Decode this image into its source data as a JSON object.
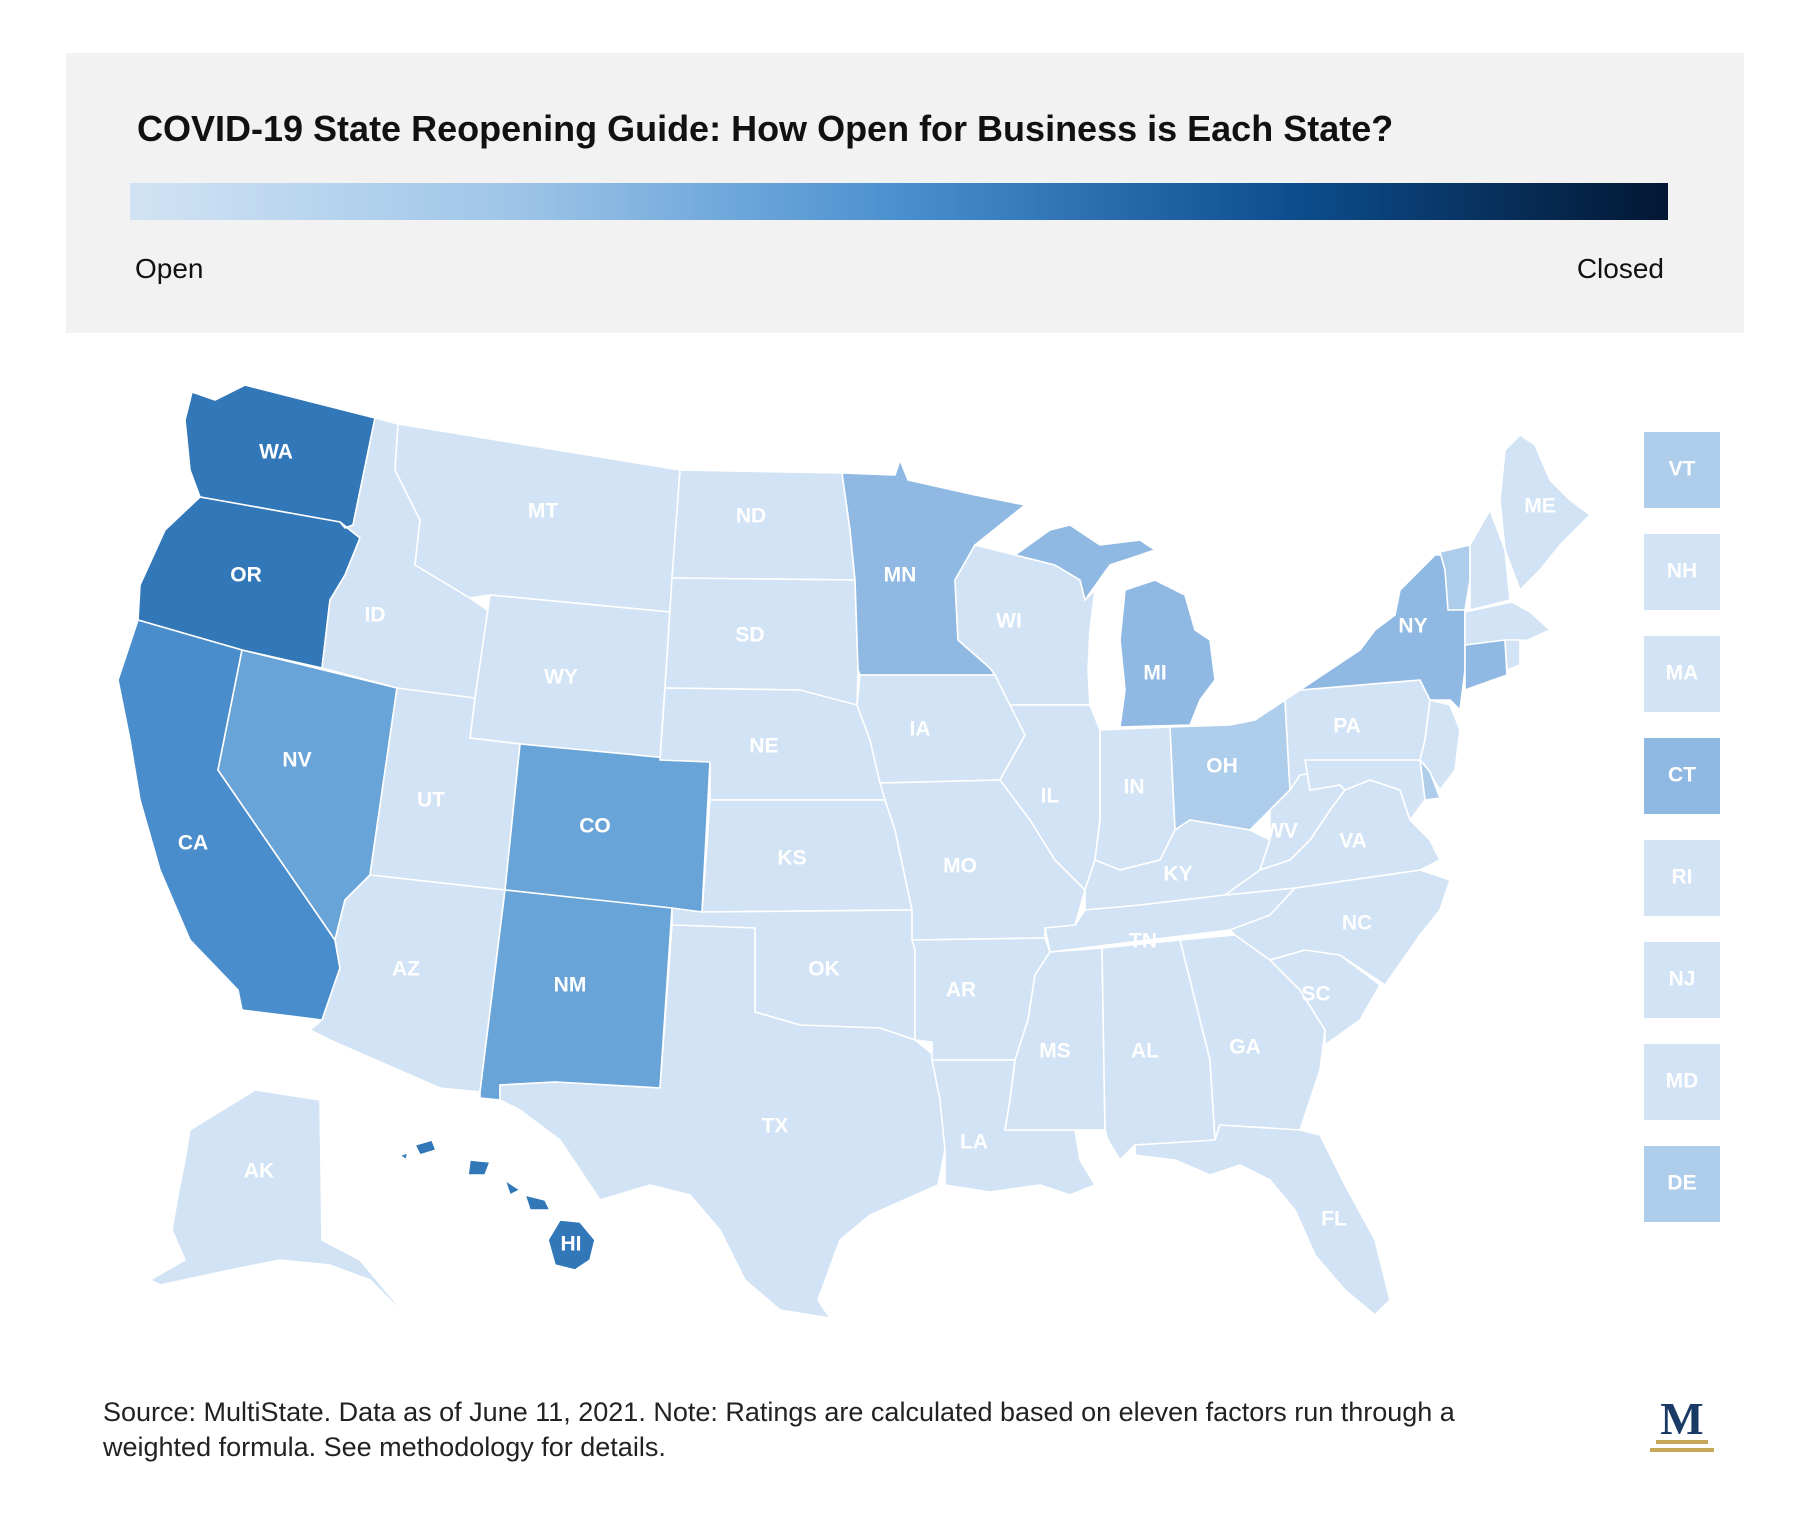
{
  "title": "COVID-19 State Reopening Guide: How Open for Business is Each State?",
  "legend": {
    "low_label": "Open",
    "high_label": "Closed",
    "gradient_colors": [
      "#d1e3f4",
      "#9ec5e8",
      "#4a90d0",
      "#0d4f91",
      "#031732"
    ]
  },
  "colors": {
    "level_1": "#d1e3f4",
    "level_2": "#adcdeb",
    "level_3": "#8fb9e3",
    "level_4": "#69a4d9",
    "level_5": "#4a8dcd",
    "level_6": "#3277b8"
  },
  "states": {
    "WA": {
      "label": "WA",
      "level": 6
    },
    "OR": {
      "label": "OR",
      "level": 6
    },
    "CA": {
      "label": "CA",
      "level": 5
    },
    "NV": {
      "label": "NV",
      "level": 4
    },
    "ID": {
      "label": "ID",
      "level": 1
    },
    "MT": {
      "label": "MT",
      "level": 1
    },
    "WY": {
      "label": "WY",
      "level": 1
    },
    "UT": {
      "label": "UT",
      "level": 1
    },
    "AZ": {
      "label": "AZ",
      "level": 1
    },
    "CO": {
      "label": "CO",
      "level": 4
    },
    "NM": {
      "label": "NM",
      "level": 4
    },
    "ND": {
      "label": "ND",
      "level": 1
    },
    "SD": {
      "label": "SD",
      "level": 1
    },
    "NE": {
      "label": "NE",
      "level": 1
    },
    "KS": {
      "label": "KS",
      "level": 1
    },
    "OK": {
      "label": "OK",
      "level": 1
    },
    "TX": {
      "label": "TX",
      "level": 1
    },
    "MN": {
      "label": "MN",
      "level": 3
    },
    "IA": {
      "label": "IA",
      "level": 1
    },
    "MO": {
      "label": "MO",
      "level": 1
    },
    "AR": {
      "label": "AR",
      "level": 1
    },
    "LA": {
      "label": "LA",
      "level": 1
    },
    "WI": {
      "label": "WI",
      "level": 1
    },
    "IL": {
      "label": "IL",
      "level": 1
    },
    "MI": {
      "label": "MI",
      "level": 3
    },
    "IN": {
      "label": "IN",
      "level": 1
    },
    "OH": {
      "label": "OH",
      "level": 2
    },
    "KY": {
      "label": "KY",
      "level": 1
    },
    "TN": {
      "label": "TN",
      "level": 1
    },
    "MS": {
      "label": "MS",
      "level": 1
    },
    "AL": {
      "label": "AL",
      "level": 1
    },
    "GA": {
      "label": "GA",
      "level": 1
    },
    "FL": {
      "label": "FL",
      "level": 1
    },
    "SC": {
      "label": "SC",
      "level": 1
    },
    "NC": {
      "label": "NC",
      "level": 1
    },
    "VA": {
      "label": "VA",
      "level": 1
    },
    "WV": {
      "label": "WV",
      "level": 1
    },
    "PA": {
      "label": "PA",
      "level": 1
    },
    "NY": {
      "label": "NY",
      "level": 3
    },
    "ME": {
      "label": "ME",
      "level": 1
    },
    "AK": {
      "label": "AK",
      "level": 1
    },
    "HI": {
      "label": "HI",
      "level": 6
    }
  },
  "small_states": [
    {
      "label": "VT",
      "level": 2
    },
    {
      "label": "NH",
      "level": 1
    },
    {
      "label": "MA",
      "level": 1
    },
    {
      "label": "CT",
      "level": 3
    },
    {
      "label": "RI",
      "level": 1
    },
    {
      "label": "NJ",
      "level": 1
    },
    {
      "label": "MD",
      "level": 1
    },
    {
      "label": "DE",
      "level": 2
    }
  ],
  "source_note": "Source: MultiState. Data as of June 11, 2021. Note: Ratings are calculated based on eleven factors run through a weighted formula. See methodology for details.",
  "logo_letter": "M"
}
